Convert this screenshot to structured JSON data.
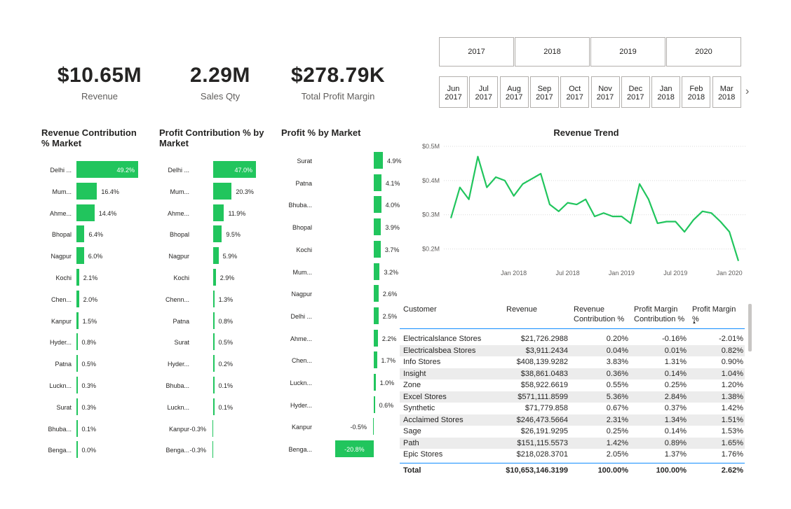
{
  "kpis": [
    {
      "value": "$10.65M",
      "label": "Revenue"
    },
    {
      "value": "2.29M",
      "label": "Sales Qty"
    },
    {
      "value": "$278.79K",
      "label": "Total Profit Margin"
    }
  ],
  "year_slicer": [
    "2017",
    "2018",
    "2019",
    "2020"
  ],
  "month_slicer": [
    {
      "m": "Jun",
      "y": "2017"
    },
    {
      "m": "Jul",
      "y": "2017"
    },
    {
      "m": "Aug",
      "y": "2017"
    },
    {
      "m": "Sep",
      "y": "2017"
    },
    {
      "m": "Oct",
      "y": "2017"
    },
    {
      "m": "Nov",
      "y": "2017"
    },
    {
      "m": "Dec",
      "y": "2017"
    },
    {
      "m": "Jan",
      "y": "2018"
    },
    {
      "m": "Feb",
      "y": "2018"
    },
    {
      "m": "Mar",
      "y": "2018"
    }
  ],
  "chevron": "›",
  "colors": {
    "bar": "#21c55d",
    "line": "#21c55d",
    "accent_border": "#118dff"
  },
  "chart_data": [
    {
      "type": "bar",
      "title": "Revenue Contribution % Market",
      "categories": [
        "Delhi ...",
        "Mum...",
        "Ahme...",
        "Bhopal",
        "Nagpur",
        "Kochi",
        "Chen...",
        "Kanpur",
        "Hyder...",
        "Patna",
        "Luckn...",
        "Surat",
        "Bhuba...",
        "Benga..."
      ],
      "values": [
        49.2,
        16.4,
        14.4,
        6.4,
        6.0,
        2.1,
        2.0,
        1.5,
        0.8,
        0.5,
        0.3,
        0.3,
        0.1,
        0.0
      ],
      "labels": [
        "49.2%",
        "16.4%",
        "14.4%",
        "6.4%",
        "6.0%",
        "2.1%",
        "2.0%",
        "1.5%",
        "0.8%",
        "0.5%",
        "0.3%",
        "0.3%",
        "0.1%",
        "0.0%"
      ]
    },
    {
      "type": "bar",
      "title": "Profit Contribution % by Market",
      "categories": [
        "Delhi ...",
        "Mum...",
        "Ahme...",
        "Bhopal",
        "Nagpur",
        "Kochi",
        "Chenn...",
        "Patna",
        "Surat",
        "Hyder...",
        "Bhuba...",
        "Luckn...",
        "Kanpur",
        "Benga..."
      ],
      "values": [
        47.0,
        20.3,
        11.9,
        9.5,
        5.9,
        2.9,
        1.3,
        0.8,
        0.5,
        0.2,
        0.1,
        0.1,
        -0.3,
        -0.3
      ],
      "labels": [
        "47.0%",
        "20.3%",
        "11.9%",
        "9.5%",
        "5.9%",
        "2.9%",
        "1.3%",
        "0.8%",
        "0.5%",
        "0.2%",
        "0.1%",
        "0.1%",
        "-0.3%",
        "-0.3%"
      ]
    },
    {
      "type": "bar",
      "title": "Profit % by Market",
      "categories": [
        "Surat",
        "Patna",
        "Bhuba...",
        "Bhopal",
        "Kochi",
        "Mum...",
        "Nagpur",
        "Delhi ...",
        "Ahme...",
        "Chen...",
        "Luckn...",
        "Hyder...",
        "Kanpur",
        "Benga..."
      ],
      "values": [
        4.9,
        4.1,
        4.0,
        3.9,
        3.7,
        3.2,
        2.6,
        2.5,
        2.2,
        1.7,
        1.0,
        0.6,
        -0.5,
        -20.8
      ],
      "labels": [
        "4.9%",
        "4.1%",
        "4.0%",
        "3.9%",
        "3.7%",
        "3.2%",
        "2.6%",
        "2.5%",
        "2.2%",
        "1.7%",
        "1.0%",
        "0.6%",
        "-0.5%",
        "-20.8%"
      ]
    },
    {
      "type": "line",
      "title": "Revenue Trend",
      "y_ticks": [
        "$0.2M",
        "$0.3M",
        "$0.4M",
        "$0.5M"
      ],
      "y_tick_values": [
        0.2,
        0.3,
        0.4,
        0.5
      ],
      "ylim": [
        0.15,
        0.5
      ],
      "x_ticks": [
        "Jan 2018",
        "Jul 2018",
        "Jan 2019",
        "Jul 2019",
        "Jan 2020"
      ],
      "x_tick_index": [
        7,
        13,
        19,
        25,
        31
      ],
      "values": [
        0.29,
        0.38,
        0.345,
        0.47,
        0.38,
        0.41,
        0.4,
        0.355,
        0.39,
        0.405,
        0.42,
        0.33,
        0.31,
        0.335,
        0.33,
        0.345,
        0.295,
        0.305,
        0.295,
        0.295,
        0.275,
        0.39,
        0.345,
        0.275,
        0.28,
        0.28,
        0.25,
        0.285,
        0.31,
        0.305,
        0.28,
        0.25,
        0.165
      ]
    }
  ],
  "table": {
    "headers": [
      "Customer",
      "Revenue",
      "Revenue Contribution %",
      "Profit Margin Contribution %",
      "Profit Margin %"
    ],
    "header_lines": [
      [
        "Customer"
      ],
      [
        "Revenue"
      ],
      [
        "Revenue",
        "Contribution %"
      ],
      [
        "Profit Margin",
        "Contribution %"
      ],
      [
        "Profit Margin %"
      ]
    ],
    "sort_indicator": "▲",
    "rows": [
      [
        "Electricalslance Stores",
        "$21,726.2988",
        "0.20%",
        "-0.16%",
        "-2.01%"
      ],
      [
        "Electricalsbea Stores",
        "$3,911.2434",
        "0.04%",
        "0.01%",
        "0.82%"
      ],
      [
        "Info Stores",
        "$408,139.9282",
        "3.83%",
        "1.31%",
        "0.90%"
      ],
      [
        "Insight",
        "$38,861.0483",
        "0.36%",
        "0.14%",
        "1.04%"
      ],
      [
        "Zone",
        "$58,922.6619",
        "0.55%",
        "0.25%",
        "1.20%"
      ],
      [
        "Excel Stores",
        "$571,111.8599",
        "5.36%",
        "2.84%",
        "1.38%"
      ],
      [
        "Synthetic",
        "$71,779.858",
        "0.67%",
        "0.37%",
        "1.42%"
      ],
      [
        "Acclaimed Stores",
        "$246,473.5664",
        "2.31%",
        "1.34%",
        "1.51%"
      ],
      [
        "Sage",
        "$26,191.9295",
        "0.25%",
        "0.14%",
        "1.53%"
      ],
      [
        "Path",
        "$151,115.5573",
        "1.42%",
        "0.89%",
        "1.65%"
      ],
      [
        "Epic Stores",
        "$218,028.3701",
        "2.05%",
        "1.37%",
        "1.76%"
      ]
    ],
    "total": [
      "Total",
      "$10,653,146.3199",
      "100.00%",
      "100.00%",
      "2.62%"
    ]
  }
}
